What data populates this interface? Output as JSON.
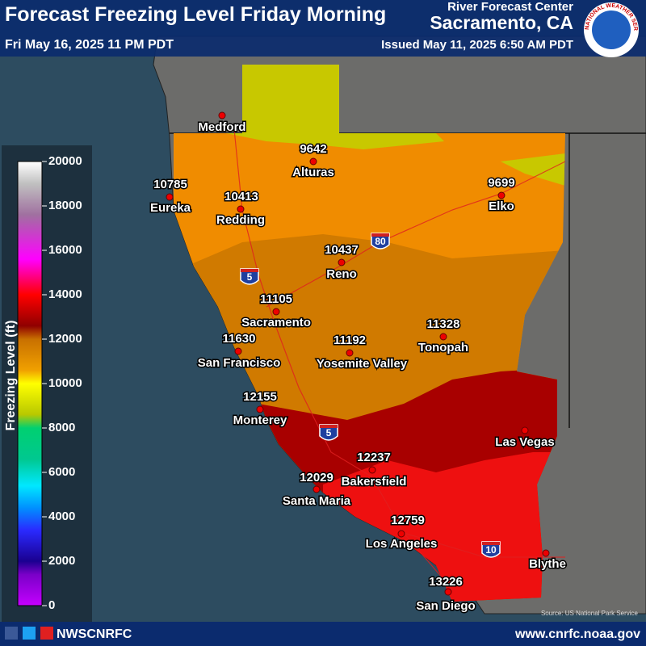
{
  "header": {
    "title": "Forecast Freezing Level Friday Morning",
    "valid_time": "Fri May 16, 2025 11 PM PDT",
    "office_line1": "River Forecast Center",
    "office_name": "Sacramento, CA",
    "issued": "Issued May 11, 2025 6:50 AM PDT",
    "logo_text": "NATIONAL WEATHER SERVICE"
  },
  "legend": {
    "title": "Freezing Level (ft)",
    "ticks": [
      20000,
      18000,
      16000,
      14000,
      12000,
      10000,
      8000,
      6000,
      4000,
      2000,
      0
    ]
  },
  "cities": [
    {
      "name": "Medford"
    },
    {
      "name": "Alturas",
      "value": 9642
    },
    {
      "name": "Eureka",
      "value": 10785
    },
    {
      "name": "Redding",
      "value": 10413
    },
    {
      "name": "Elko",
      "value": 9699
    },
    {
      "name": "Reno",
      "value": 10437
    },
    {
      "name": "Sacramento",
      "value": 11105
    },
    {
      "name": "San Francisco",
      "value": 11630
    },
    {
      "name": "Yosemite Valley",
      "value": 11192
    },
    {
      "name": "Tonopah",
      "value": 11328
    },
    {
      "name": "Monterey",
      "value": 12155
    },
    {
      "name": "Las Vegas"
    },
    {
      "name": "Bakersfield",
      "value": 12237
    },
    {
      "name": "Santa Maria",
      "value": 12029
    },
    {
      "name": "Los Angeles",
      "value": 12759
    },
    {
      "name": "Blythe"
    },
    {
      "name": "San Diego",
      "value": 13226
    }
  ],
  "highways": [
    "5",
    "80",
    "5",
    "10"
  ],
  "source": "Source: US National Park Service",
  "footer": {
    "handle": "NWSCNRFC",
    "website": "www.cnrfc.noaa.gov"
  }
}
